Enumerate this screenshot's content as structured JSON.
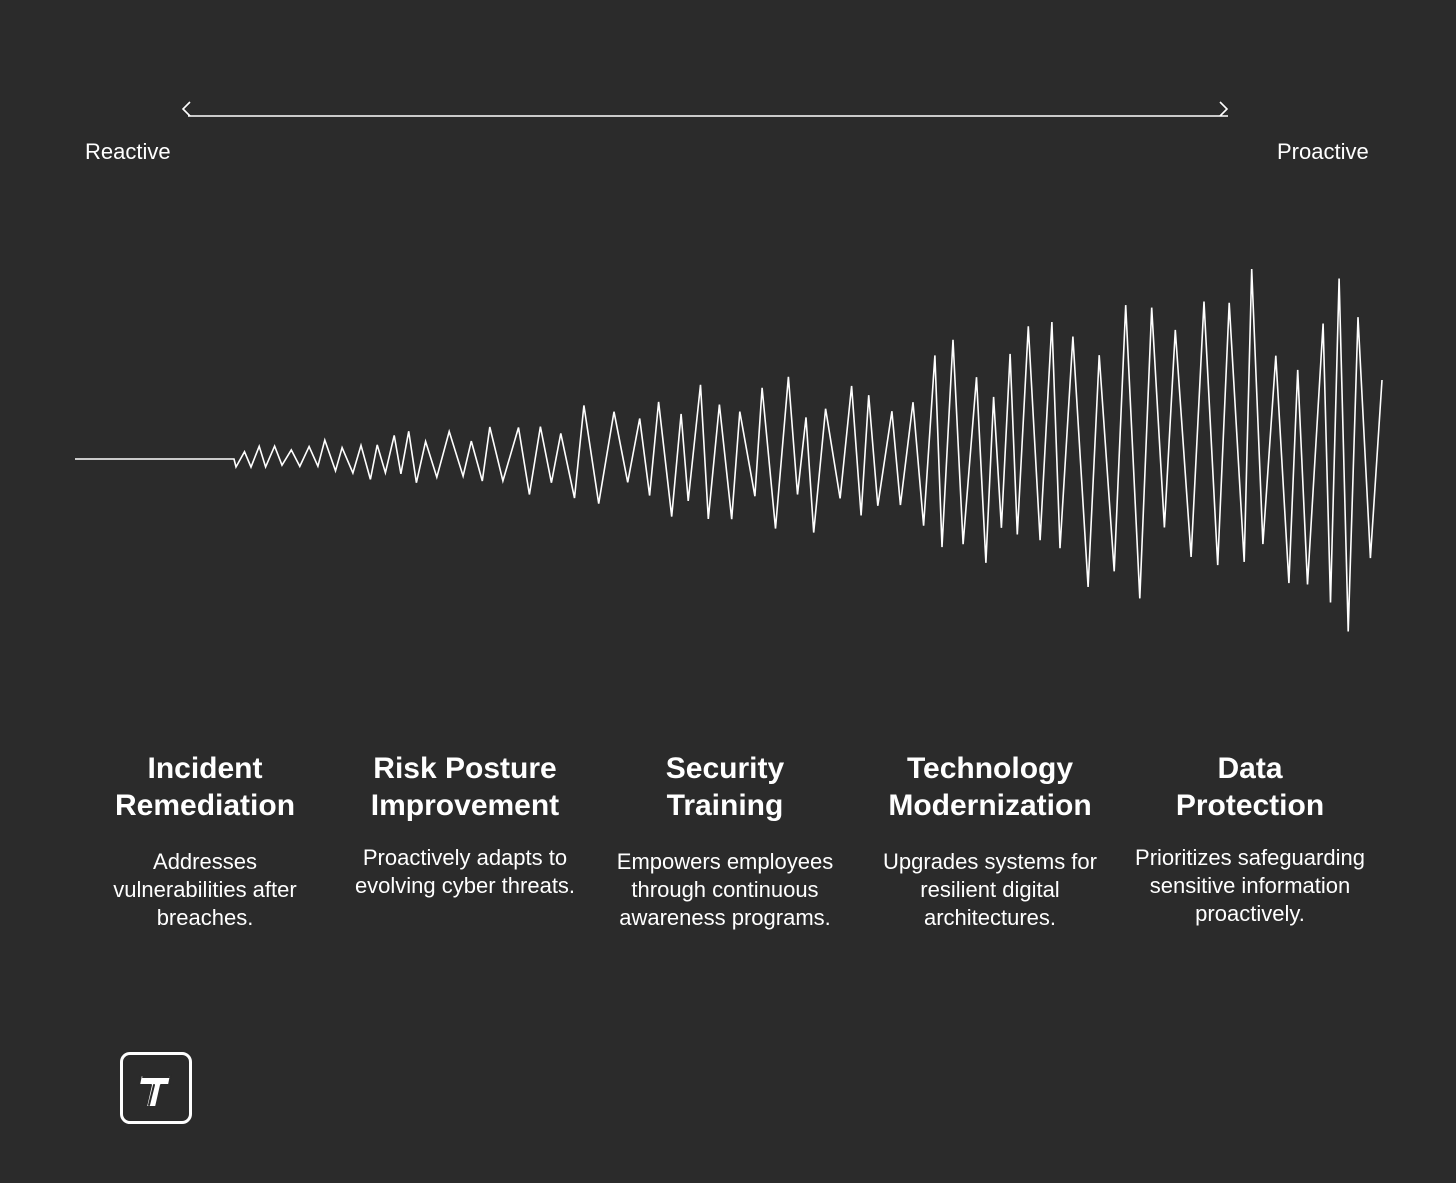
{
  "scale": {
    "left_label": "Reactive",
    "right_label": "Proactive"
  },
  "stages": [
    {
      "title_line1": "Incident",
      "title_line2": "Remediation",
      "description": "Addresses vulnerabilities after breaches."
    },
    {
      "title_line1": "Risk Posture",
      "title_line2": "Improvement",
      "description": "Proactively adapts to evolving cyber threats."
    },
    {
      "title_line1": "Security",
      "title_line2": "Training",
      "description": "Empowers employees through continuous awareness programs."
    },
    {
      "title_line1": "Technology",
      "title_line2": "Modernization",
      "description": "Upgrades systems for resilient digital architectures."
    },
    {
      "title_line1": "Data",
      "title_line2": "Protection",
      "description": "Prioritizes safeguarding sensitive information proactively."
    }
  ],
  "logo": {
    "letter": "T",
    "icon": "t-logo-icon"
  },
  "colors": {
    "background": "#2b2b2b",
    "foreground": "#ffffff"
  }
}
